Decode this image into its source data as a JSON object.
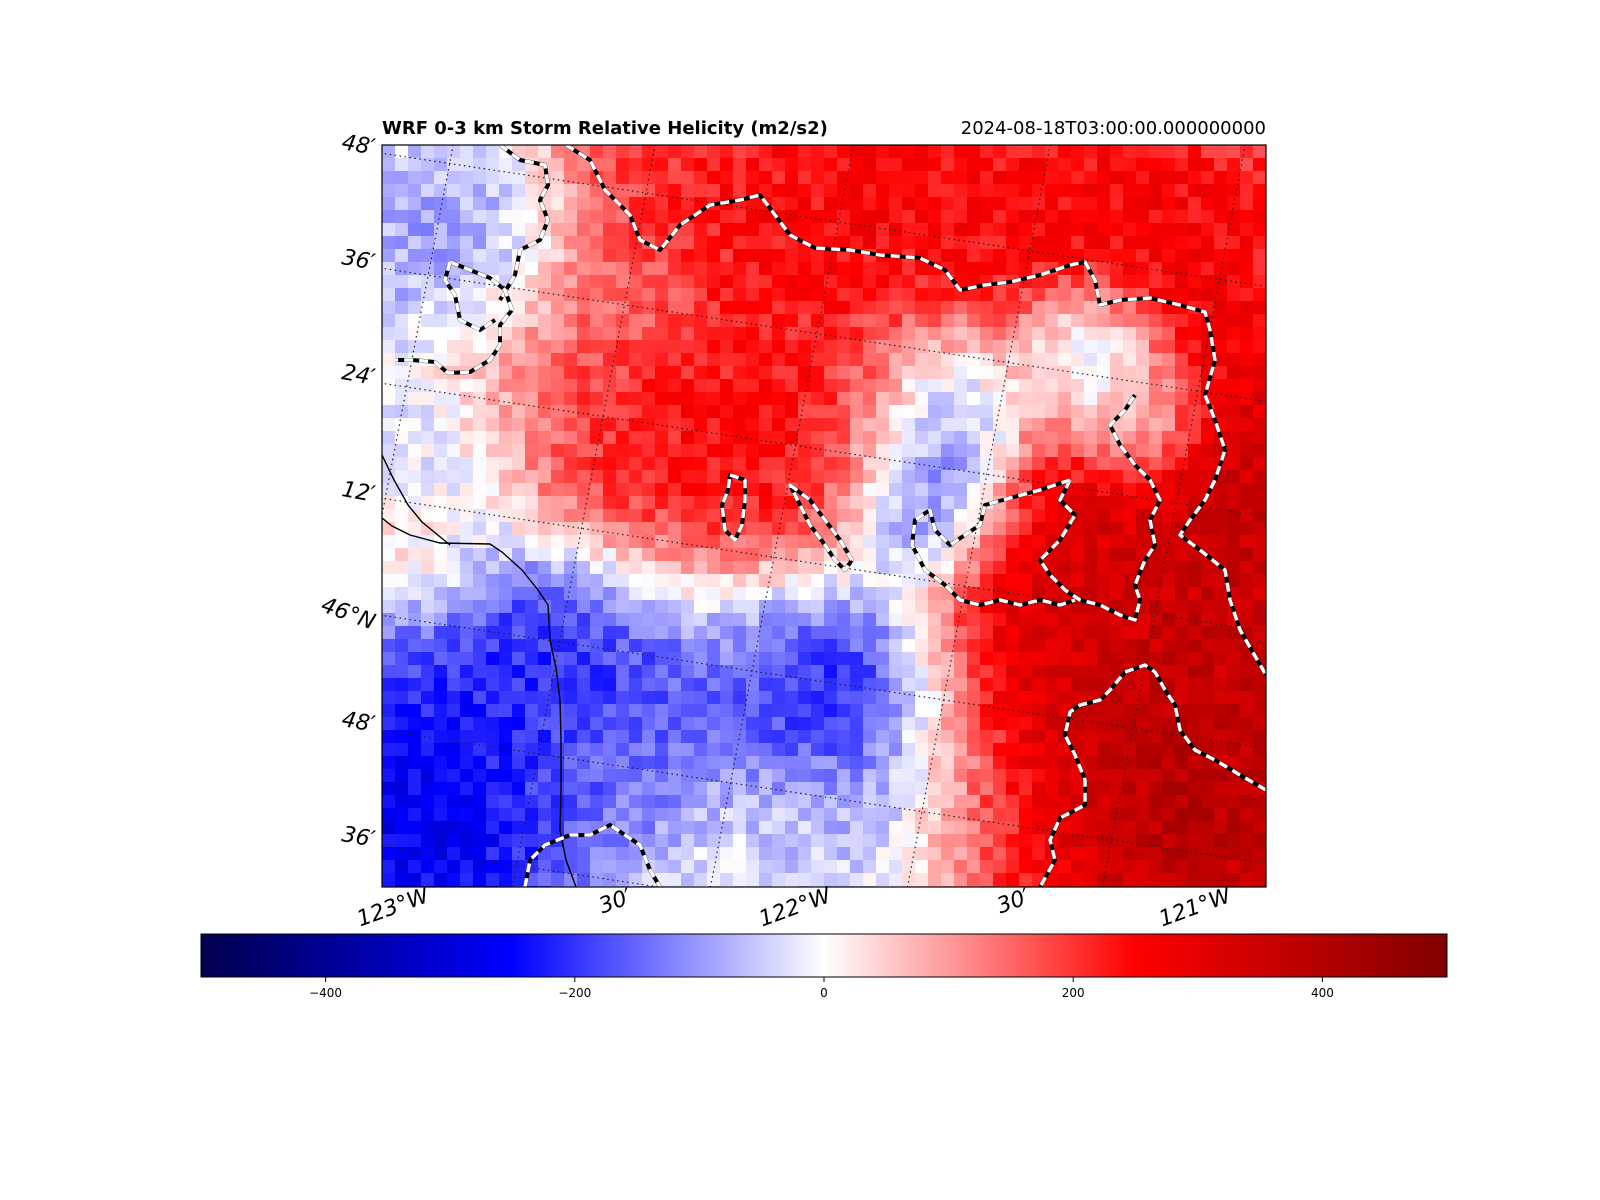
{
  "title": {
    "left": "WRF 0-3 km Storm Relative Helicity (m2/s2)",
    "right": "2024-08-18T03:00:00.000000000"
  },
  "map": {
    "lat_labels": [
      "48′",
      "36′",
      "24′",
      "12′",
      "46°N",
      "48′",
      "36′"
    ],
    "lon_labels": [
      "123°W",
      "30′",
      "122°W",
      "30′",
      "121°W"
    ],
    "field_description_colors": {
      "negative": "#0000ff",
      "zero": "#ffffff",
      "positive": "#ff0000",
      "extreme_positive": "#800000"
    },
    "contour_style": "dashed black-and-white",
    "border_style": "solid black"
  },
  "colorbar": {
    "min": -500,
    "max": 500,
    "ticks": [
      -400,
      -200,
      0,
      200,
      400
    ],
    "tick_labels": [
      "−400",
      "−200",
      "0",
      "200",
      "400"
    ],
    "colormap": "seismic"
  }
}
